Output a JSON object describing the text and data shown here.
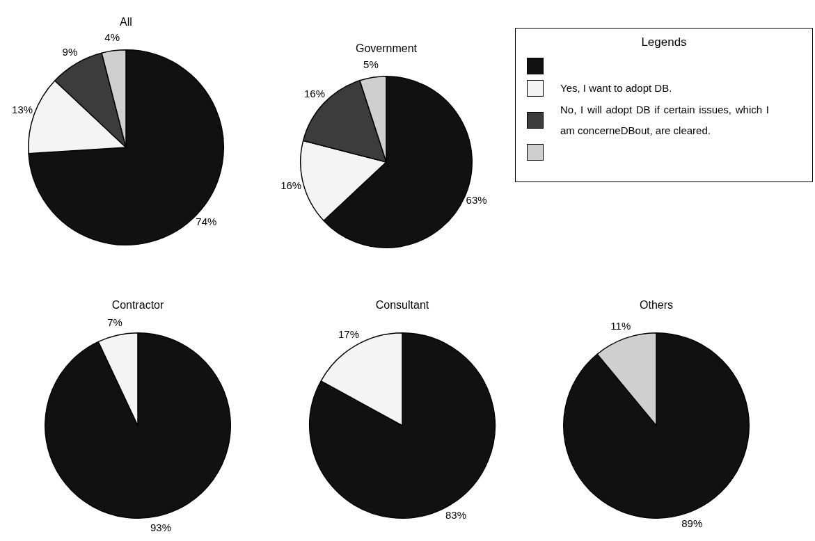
{
  "chart_data": [
    {
      "type": "pie",
      "title": "All",
      "categories": [
        null,
        null,
        null,
        null
      ],
      "values": [
        74,
        13,
        9,
        4
      ],
      "value_labels": [
        "74%",
        "13%",
        "9%",
        "4%"
      ],
      "colors": [
        "#111111",
        "#f4f4f4",
        "#3c3c3c",
        "#cfcfcf"
      ]
    },
    {
      "type": "pie",
      "title": "Government",
      "categories": [
        null,
        "Yes, I want to adopt DB.",
        "No, I will adopt DB if certain issues, which I am concerneDBout, are cleared.",
        null
      ],
      "values": [
        63,
        16,
        16,
        5
      ],
      "value_labels": [
        "63%",
        "16%",
        "16%",
        "5%"
      ],
      "colors": [
        "#111111",
        "#f4f4f4",
        "#3c3c3c",
        "#cfcfcf"
      ],
      "legend": "right",
      "legend_title": "Legends"
    },
    {
      "type": "pie",
      "title": "Contractor",
      "categories": [
        null,
        null,
        null,
        null
      ],
      "values": [
        93,
        7,
        null,
        null
      ],
      "value_labels": [
        "93%",
        "7%",
        null,
        null
      ],
      "colors": [
        "#111111",
        "#f4f4f4",
        "#3c3c3c",
        "#cfcfcf"
      ]
    },
    {
      "type": "pie",
      "title": "Consultant",
      "categories": [
        null,
        null,
        null,
        null
      ],
      "values": [
        83,
        17,
        null,
        null
      ],
      "value_labels": [
        "83%",
        "17%",
        null,
        null
      ],
      "colors": [
        "#111111",
        "#f4f4f4",
        "#3c3c3c",
        "#cfcfcf"
      ]
    },
    {
      "type": "pie",
      "title": "Others",
      "categories": [
        null,
        null,
        null,
        null
      ],
      "values": [
        89,
        null,
        null,
        11
      ],
      "value_labels": [
        "89%",
        null,
        null,
        "11%"
      ],
      "colors": [
        "#111111",
        "#f4f4f4",
        "#3c3c3c",
        "#cfcfcf"
      ]
    }
  ]
}
